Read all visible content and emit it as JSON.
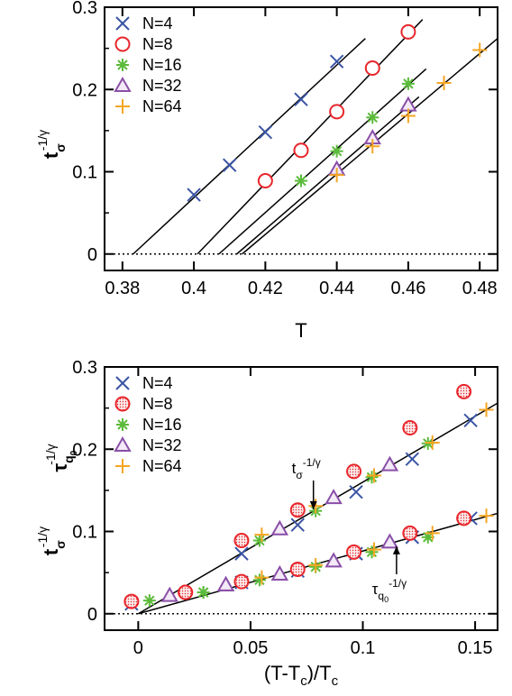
{
  "chart_data": [
    {
      "type": "scatter",
      "xlabel": "T",
      "ylabel": "t_σ^(-1/γ)",
      "ylabel_base": "t",
      "ylabel_sub": "σ",
      "ylabel_sup": "-1/γ",
      "xlim": [
        0.375,
        0.485
      ],
      "ylim": [
        -0.02,
        0.3
      ],
      "xticks": [
        0.38,
        0.4,
        0.42,
        0.44,
        0.46,
        0.48
      ],
      "xtick_labels": [
        "0.38",
        "0.4",
        "0.42",
        "0.44",
        "0.46",
        "0.48"
      ],
      "yticks": [
        0,
        0.1,
        0.2,
        0.3
      ],
      "ytick_labels": [
        "0",
        "0.1",
        "0.2",
        "0.3"
      ],
      "zero_line": "dotted",
      "legend_position": "top-left",
      "series": [
        {
          "name": "N=4",
          "marker": "x",
          "color": "#3a55a4",
          "x": [
            0.4,
            0.41,
            0.42,
            0.43,
            0.44
          ],
          "y": [
            0.072,
            0.108,
            0.148,
            0.188,
            0.234
          ]
        },
        {
          "name": "N=8",
          "marker": "circle",
          "color": "#e8262b",
          "x": [
            0.42,
            0.43,
            0.44,
            0.45,
            0.46
          ],
          "y": [
            0.089,
            0.126,
            0.173,
            0.226,
            0.27
          ]
        },
        {
          "name": "N=16",
          "marker": "asterisk",
          "color": "#5bbb3a",
          "x": [
            0.43,
            0.44,
            0.45,
            0.46
          ],
          "y": [
            0.089,
            0.125,
            0.166,
            0.207
          ]
        },
        {
          "name": "N=32",
          "marker": "triangle",
          "color": "#8a4fa8",
          "x": [
            0.44,
            0.45,
            0.46
          ],
          "y": [
            0.103,
            0.141,
            0.181
          ]
        },
        {
          "name": "N=64",
          "marker": "plus",
          "color": "#f5a623",
          "x": [
            0.44,
            0.45,
            0.46,
            0.47,
            0.48
          ],
          "y": [
            0.096,
            0.131,
            0.168,
            0.208,
            0.248
          ]
        }
      ],
      "fit_lines": [
        {
          "x": [
            0.383,
            0.448
          ],
          "y": [
            0.0,
            0.262
          ]
        },
        {
          "x": [
            0.401,
            0.464
          ],
          "y": [
            0.0,
            0.285
          ]
        },
        {
          "x": [
            0.407,
            0.465
          ],
          "y": [
            0.0,
            0.225
          ]
        },
        {
          "x": [
            0.412,
            0.463
          ],
          "y": [
            0.0,
            0.191
          ]
        },
        {
          "x": [
            0.4135,
            0.485
          ],
          "y": [
            0.0,
            0.262
          ]
        }
      ]
    },
    {
      "type": "scatter",
      "xlabel": "(T-T_c)/T_c",
      "xlabel_parts": [
        "(T-T",
        "c",
        ")/T",
        "c"
      ],
      "ylabel_top": "τ_q0^(-1/γ)",
      "ylabel_top_base": "τ",
      "ylabel_top_sub": "q",
      "ylabel_top_subsub": "0",
      "ylabel_top_sup": "-1/γ",
      "ylabel_bottom": "t_σ^(-1/γ)",
      "ylabel_bottom_base": "t",
      "ylabel_bottom_sub": "σ",
      "ylabel_bottom_sup": "-1/γ",
      "xlim": [
        -0.015,
        0.16
      ],
      "ylim": [
        -0.02,
        0.3
      ],
      "xticks": [
        0,
        0.05,
        0.1,
        0.15
      ],
      "xtick_labels": [
        "0",
        "0.05",
        "0.1",
        "0.15"
      ],
      "yticks": [
        0,
        0.1,
        0.2,
        0.3
      ],
      "ytick_labels": [
        "0",
        "0.1",
        "0.2",
        "0.3"
      ],
      "zero_line": "dotted",
      "legend_position": "top-left",
      "series": [
        {
          "name": "N=4",
          "marker": "x",
          "color": "#3a55a4",
          "x": [
            -0.003,
            0.046,
            0.071,
            0.097,
            0.122,
            0.148
          ],
          "y": [
            0.012,
            0.073,
            0.108,
            0.148,
            0.188,
            0.235
          ]
        },
        {
          "name": "N=8",
          "marker": "circle-dotted",
          "color": "#e8262b",
          "x": [
            -0.003,
            0.021,
            0.046,
            0.071,
            0.096,
            0.121,
            0.145
          ],
          "y": [
            0.015,
            0.026,
            0.089,
            0.126,
            0.173,
            0.226,
            0.27
          ]
        },
        {
          "name": "N=16",
          "marker": "asterisk",
          "color": "#5bbb3a",
          "x": [
            0.005,
            0.029,
            0.054,
            0.079,
            0.104,
            0.129
          ],
          "y": [
            0.016,
            0.026,
            0.089,
            0.125,
            0.166,
            0.207
          ]
        },
        {
          "name": "N=32",
          "marker": "triangle",
          "color": "#8a4fa8",
          "x": [
            0.014,
            0.039,
            0.063,
            0.087,
            0.112
          ],
          "y": [
            0.022,
            0.035,
            0.103,
            0.141,
            0.181
          ]
        },
        {
          "name": "N=64",
          "marker": "plus",
          "color": "#f5a623",
          "x": [
            0.055,
            0.079,
            0.105,
            0.131,
            0.155
          ],
          "y": [
            0.096,
            0.131,
            0.168,
            0.208,
            0.248
          ]
        }
      ],
      "lower_series": [
        {
          "name": "N=4",
          "marker": "x",
          "color": "#3a55a4",
          "x": [
            0.046,
            0.071,
            0.097,
            0.122,
            0.148
          ],
          "y": [
            0.038,
            0.052,
            0.073,
            0.093,
            0.116
          ]
        },
        {
          "name": "N=8",
          "marker": "circle-dotted",
          "color": "#e8262b",
          "x": [
            0.021,
            0.046,
            0.071,
            0.096,
            0.121,
            0.145
          ],
          "y": [
            0.026,
            0.039,
            0.054,
            0.075,
            0.098,
            0.116
          ]
        },
        {
          "name": "N=16",
          "marker": "asterisk",
          "color": "#5bbb3a",
          "x": [
            0.029,
            0.054,
            0.079,
            0.104,
            0.129
          ],
          "y": [
            0.026,
            0.041,
            0.057,
            0.075,
            0.093
          ]
        },
        {
          "name": "N=32",
          "marker": "triangle",
          "color": "#8a4fa8",
          "x": [
            0.039,
            0.063,
            0.087,
            0.112
          ],
          "y": [
            0.035,
            0.048,
            0.064,
            0.087
          ]
        },
        {
          "name": "N=64",
          "marker": "plus",
          "color": "#f5a623",
          "x": [
            0.055,
            0.079,
            0.105,
            0.131,
            0.155
          ],
          "y": [
            0.044,
            0.059,
            0.078,
            0.098,
            0.119
          ]
        }
      ],
      "fit_lines": [
        {
          "x": [
            0.0,
            0.16
          ],
          "y": [
            0.0,
            0.256
          ]
        },
        {
          "x": [
            0.0,
            0.16
          ],
          "y": [
            0.0,
            0.122
          ]
        }
      ],
      "annotations": [
        {
          "text_base": "t",
          "text_sub": "σ",
          "text_sup": "-1/γ",
          "arrow_to": [
            0.078,
            0.127
          ],
          "arrow_from": [
            0.078,
            0.162
          ]
        },
        {
          "text_base": "τ",
          "text_sub": "q",
          "text_subsub": "0",
          "text_sup": "-1/γ",
          "arrow_to": [
            0.115,
            0.082
          ],
          "arrow_from": [
            0.115,
            0.048
          ]
        }
      ]
    }
  ]
}
